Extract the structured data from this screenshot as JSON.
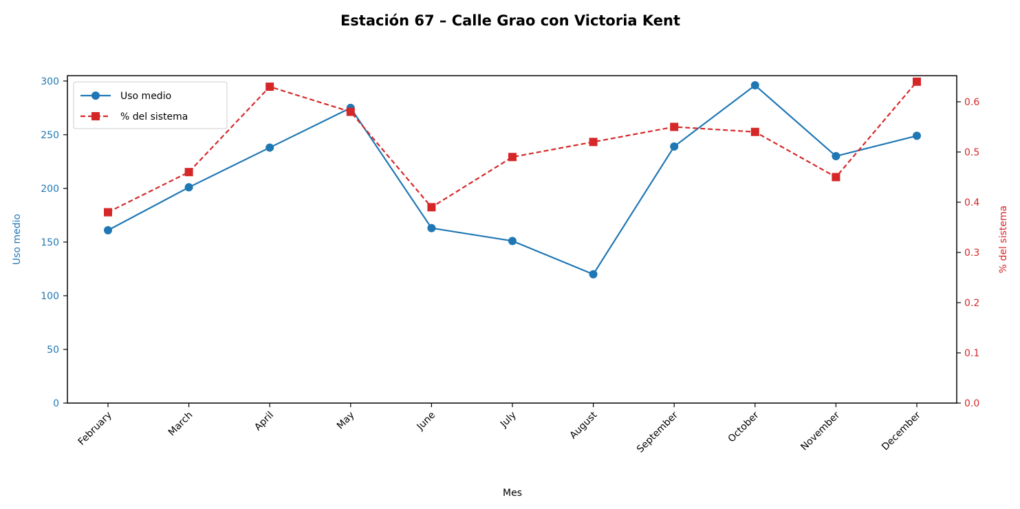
{
  "chart_data": {
    "type": "line",
    "title": "Estación 67 – Calle Grao con Victoria Kent",
    "xlabel": "Mes",
    "categories": [
      "February",
      "March",
      "April",
      "May",
      "June",
      "July",
      "August",
      "September",
      "October",
      "November",
      "December"
    ],
    "y_left": {
      "label": "Uso medio",
      "range": [
        0,
        305
      ],
      "ticks": [
        0,
        50,
        100,
        150,
        200,
        250,
        300
      ],
      "tick_labels": [
        "0",
        "50",
        "100",
        "150",
        "200",
        "250",
        "300"
      ],
      "color": "#1f77b4"
    },
    "y_right": {
      "label": "% del sistema",
      "range": [
        0,
        0.652
      ],
      "ticks": [
        0.0,
        0.1,
        0.2,
        0.3,
        0.4,
        0.5,
        0.6
      ],
      "tick_labels": [
        "0.0",
        "0.1",
        "0.2",
        "0.3",
        "0.4",
        "0.5",
        "0.6"
      ],
      "color": "#d62728"
    },
    "series": [
      {
        "name": "Uso medio",
        "axis": "left",
        "color": "#1f77b4",
        "line_style": "solid",
        "marker": "circle",
        "values": [
          161,
          201,
          238,
          275,
          163,
          151,
          120,
          239,
          296,
          230,
          249
        ]
      },
      {
        "name": "% del sistema",
        "axis": "right",
        "color": "#d62728",
        "line_style": "dashed",
        "marker": "square",
        "values": [
          0.38,
          0.46,
          0.63,
          0.58,
          0.39,
          0.49,
          0.52,
          0.55,
          0.54,
          0.45,
          0.64
        ]
      }
    ],
    "legend_position": "top-left",
    "grid": false
  }
}
